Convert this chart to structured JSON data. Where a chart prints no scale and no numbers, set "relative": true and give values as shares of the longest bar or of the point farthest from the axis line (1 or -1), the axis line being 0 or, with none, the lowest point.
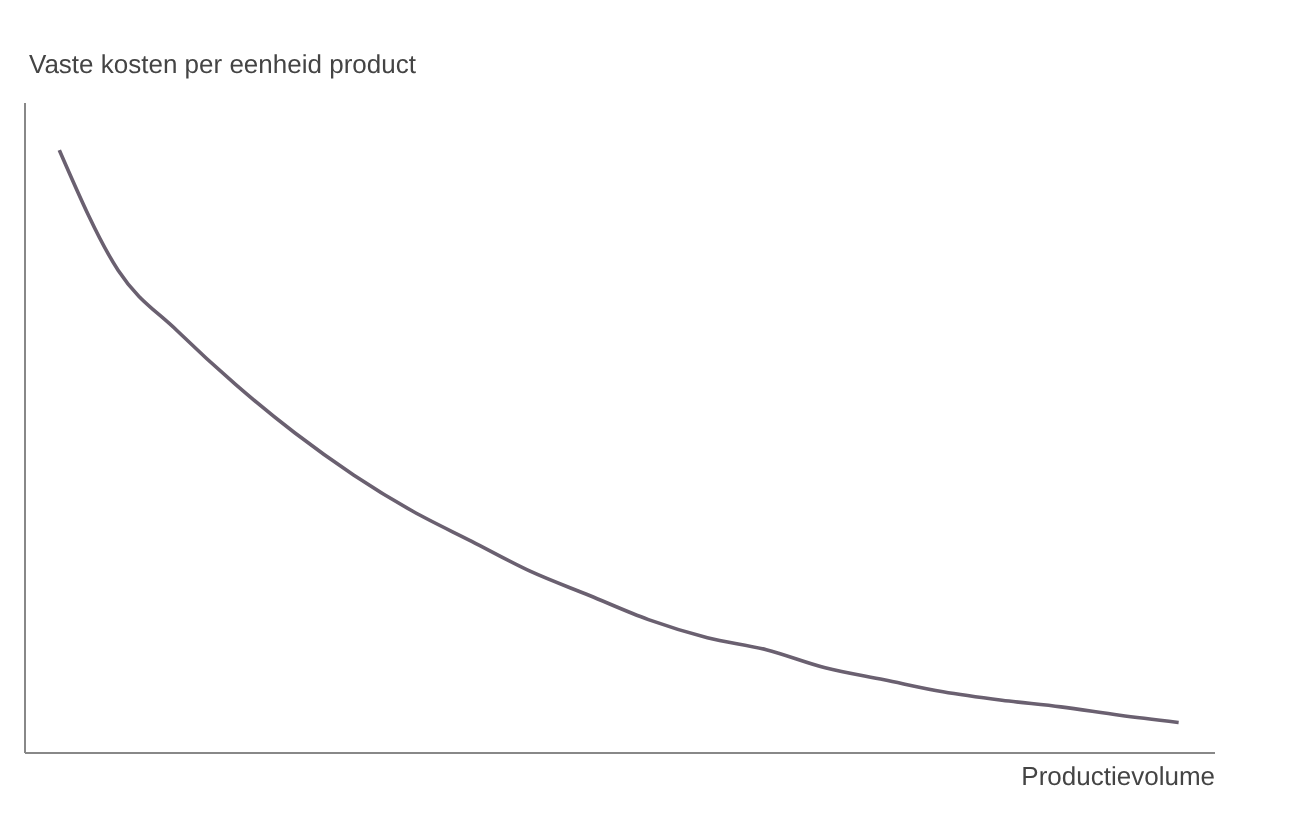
{
  "chart_data": {
    "type": "line",
    "xlabel": "Productievolume",
    "ylabel": "Vaste kosten per eenheid product",
    "relative": true,
    "tick_labels": false,
    "grid": false,
    "categories": [
      null,
      null,
      null,
      null,
      null,
      null,
      null,
      null,
      null,
      null,
      null,
      null,
      null,
      null,
      null,
      null,
      null,
      null,
      null,
      null
    ],
    "series": [
      {
        "color": "#6a6070",
        "values": [
          1,
          0.8,
          0.7,
          0.61,
          0.53,
          0.46,
          0.4,
          0.35,
          0.3,
          0.26,
          0.22,
          0.19,
          0.17,
          0.14,
          0.12,
          0.1,
          0.086,
          0.075,
          0.061,
          0.049
        ]
      }
    ]
  }
}
